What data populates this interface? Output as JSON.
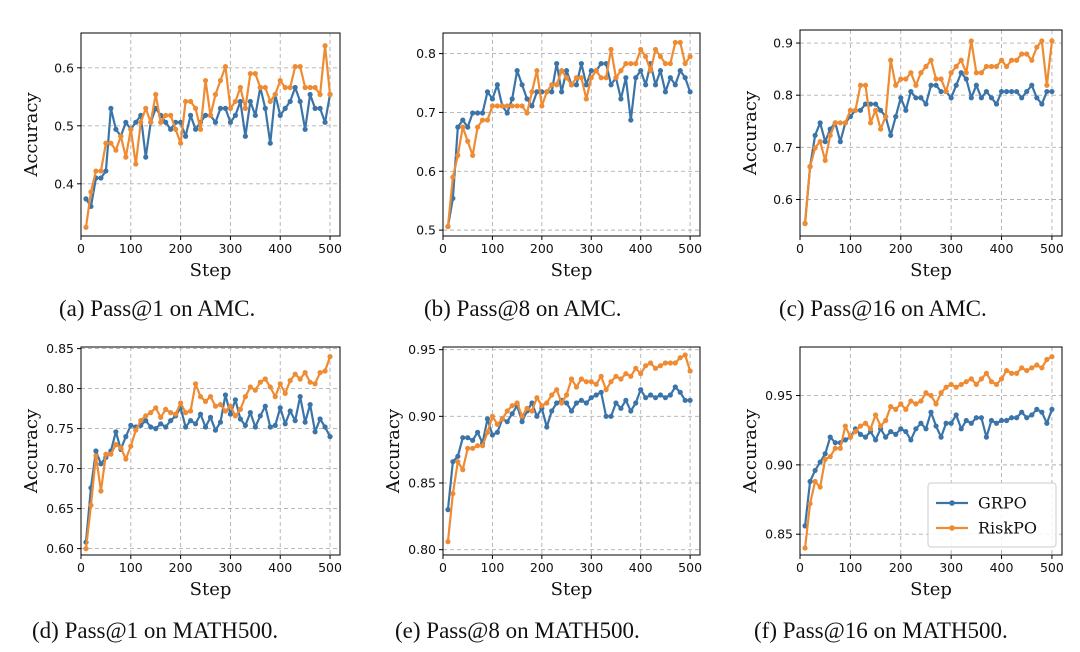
{
  "colors": {
    "grpo": "#3b74a8",
    "riskpo": "#ef8b33",
    "grid": "#b0b0b0",
    "axis": "#000000"
  },
  "legend": {
    "grpo_label": "GRPO",
    "riskpo_label": "RiskPO",
    "placement": "lower-right"
  },
  "chart_data": [
    {
      "type": "line",
      "caption": "(a) Pass@1 on AMC.",
      "xlabel": "Step",
      "ylabel": "Accuracy",
      "xlim": [
        0,
        520
      ],
      "ylim": [
        0.31,
        0.66
      ],
      "xticks": [
        0,
        100,
        200,
        300,
        400,
        500
      ],
      "yticks": [
        0.4,
        0.5,
        0.6
      ],
      "x": [
        10,
        20,
        30,
        40,
        50,
        60,
        70,
        80,
        90,
        100,
        110,
        120,
        130,
        140,
        150,
        160,
        170,
        180,
        190,
        200,
        210,
        220,
        230,
        240,
        250,
        260,
        270,
        280,
        290,
        300,
        310,
        320,
        330,
        340,
        350,
        360,
        370,
        380,
        390,
        400,
        410,
        420,
        430,
        440,
        450,
        460,
        470,
        480,
        490,
        500
      ],
      "series": [
        {
          "name": "GRPO",
          "key": "grpo",
          "values": [
            0.374,
            0.361,
            0.41,
            0.41,
            0.422,
            0.53,
            0.494,
            0.482,
            0.506,
            0.494,
            0.506,
            0.518,
            0.446,
            0.506,
            0.53,
            0.518,
            0.506,
            0.494,
            0.506,
            0.506,
            0.482,
            0.518,
            0.494,
            0.506,
            0.518,
            0.518,
            0.506,
            0.53,
            0.53,
            0.506,
            0.518,
            0.542,
            0.482,
            0.542,
            0.518,
            0.566,
            0.53,
            0.47,
            0.554,
            0.518,
            0.53,
            0.542,
            0.566,
            0.542,
            0.494,
            0.554,
            0.53,
            0.53,
            0.506,
            0.554
          ]
        },
        {
          "name": "RiskPO",
          "key": "riskpo",
          "values": [
            0.325,
            0.386,
            0.422,
            0.422,
            0.47,
            0.47,
            0.458,
            0.482,
            0.446,
            0.494,
            0.434,
            0.506,
            0.53,
            0.506,
            0.554,
            0.506,
            0.518,
            0.518,
            0.494,
            0.47,
            0.542,
            0.542,
            0.53,
            0.494,
            0.578,
            0.518,
            0.554,
            0.578,
            0.602,
            0.53,
            0.542,
            0.566,
            0.53,
            0.59,
            0.59,
            0.566,
            0.566,
            0.542,
            0.554,
            0.578,
            0.566,
            0.566,
            0.602,
            0.602,
            0.566,
            0.566,
            0.566,
            0.554,
            0.638,
            0.554
          ]
        }
      ]
    },
    {
      "type": "line",
      "caption": "(b) Pass@8 on AMC.",
      "xlabel": "Step",
      "ylabel": "",
      "xlim": [
        0,
        520
      ],
      "ylim": [
        0.49,
        0.835
      ],
      "xticks": [
        0,
        100,
        200,
        300,
        400,
        500
      ],
      "yticks": [
        0.5,
        0.6,
        0.7,
        0.8
      ],
      "x": [
        10,
        20,
        30,
        40,
        50,
        60,
        70,
        80,
        90,
        100,
        110,
        120,
        130,
        140,
        150,
        160,
        170,
        180,
        190,
        200,
        210,
        220,
        230,
        240,
        250,
        260,
        270,
        280,
        290,
        300,
        310,
        320,
        330,
        340,
        350,
        360,
        370,
        380,
        390,
        400,
        410,
        420,
        430,
        440,
        450,
        460,
        470,
        480,
        490,
        500
      ],
      "series": [
        {
          "name": "GRPO",
          "key": "grpo",
          "values": [
            0.506,
            0.554,
            0.675,
            0.687,
            0.675,
            0.699,
            0.699,
            0.699,
            0.735,
            0.723,
            0.747,
            0.711,
            0.699,
            0.723,
            0.771,
            0.747,
            0.723,
            0.711,
            0.735,
            0.735,
            0.735,
            0.735,
            0.783,
            0.735,
            0.771,
            0.747,
            0.747,
            0.783,
            0.747,
            0.771,
            0.771,
            0.783,
            0.783,
            0.747,
            0.759,
            0.723,
            0.759,
            0.687,
            0.759,
            0.771,
            0.747,
            0.783,
            0.747,
            0.771,
            0.735,
            0.759,
            0.747,
            0.771,
            0.759,
            0.735
          ]
        },
        {
          "name": "RiskPO",
          "key": "riskpo",
          "values": [
            0.506,
            0.59,
            0.627,
            0.675,
            0.651,
            0.627,
            0.675,
            0.687,
            0.687,
            0.711,
            0.711,
            0.711,
            0.711,
            0.711,
            0.711,
            0.711,
            0.699,
            0.735,
            0.771,
            0.711,
            0.735,
            0.747,
            0.747,
            0.771,
            0.759,
            0.747,
            0.759,
            0.759,
            0.723,
            0.759,
            0.771,
            0.759,
            0.759,
            0.807,
            0.759,
            0.771,
            0.783,
            0.783,
            0.783,
            0.807,
            0.795,
            0.771,
            0.807,
            0.795,
            0.783,
            0.783,
            0.819,
            0.819,
            0.783,
            0.795
          ]
        }
      ]
    },
    {
      "type": "line",
      "caption": "(c) Pass@16 on AMC.",
      "xlabel": "Step",
      "ylabel": "Accuracy",
      "xlim": [
        0,
        520
      ],
      "ylim": [
        0.53,
        0.925
      ],
      "xticks": [
        0,
        100,
        200,
        300,
        400,
        500
      ],
      "yticks": [
        0.6,
        0.7,
        0.8,
        0.9
      ],
      "x": [
        10,
        20,
        30,
        40,
        50,
        60,
        70,
        80,
        90,
        100,
        110,
        120,
        130,
        140,
        150,
        160,
        170,
        180,
        190,
        200,
        210,
        220,
        230,
        240,
        250,
        260,
        270,
        280,
        290,
        300,
        310,
        320,
        330,
        340,
        350,
        360,
        370,
        380,
        390,
        400,
        410,
        420,
        430,
        440,
        450,
        460,
        470,
        480,
        490,
        500
      ],
      "series": [
        {
          "name": "GRPO",
          "key": "grpo",
          "values": [
            0.554,
            0.663,
            0.723,
            0.747,
            0.711,
            0.735,
            0.747,
            0.711,
            0.747,
            0.759,
            0.771,
            0.771,
            0.783,
            0.783,
            0.783,
            0.771,
            0.759,
            0.723,
            0.759,
            0.795,
            0.771,
            0.807,
            0.795,
            0.795,
            0.783,
            0.819,
            0.819,
            0.807,
            0.807,
            0.795,
            0.819,
            0.843,
            0.831,
            0.795,
            0.819,
            0.795,
            0.807,
            0.795,
            0.783,
            0.807,
            0.807,
            0.807,
            0.807,
            0.795,
            0.807,
            0.819,
            0.795,
            0.783,
            0.807,
            0.807
          ]
        },
        {
          "name": "RiskPO",
          "key": "riskpo",
          "values": [
            0.554,
            0.663,
            0.699,
            0.711,
            0.675,
            0.723,
            0.747,
            0.747,
            0.747,
            0.771,
            0.771,
            0.819,
            0.819,
            0.747,
            0.771,
            0.735,
            0.759,
            0.867,
            0.819,
            0.831,
            0.831,
            0.843,
            0.819,
            0.843,
            0.855,
            0.867,
            0.831,
            0.831,
            0.807,
            0.843,
            0.855,
            0.867,
            0.843,
            0.904,
            0.843,
            0.843,
            0.855,
            0.855,
            0.855,
            0.867,
            0.855,
            0.867,
            0.867,
            0.879,
            0.879,
            0.867,
            0.892,
            0.904,
            0.819,
            0.904
          ]
        }
      ]
    },
    {
      "type": "line",
      "caption": "(d) Pass@1 on MATH500.",
      "xlabel": "Step",
      "ylabel": "Accuracy",
      "xlim": [
        0,
        520
      ],
      "ylim": [
        0.592,
        0.852
      ],
      "xticks": [
        0,
        100,
        200,
        300,
        400,
        500
      ],
      "yticks": [
        0.6,
        0.65,
        0.7,
        0.75,
        0.8,
        0.85
      ],
      "x": [
        10,
        20,
        30,
        40,
        50,
        60,
        70,
        80,
        90,
        100,
        110,
        120,
        130,
        140,
        150,
        160,
        170,
        180,
        190,
        200,
        210,
        220,
        230,
        240,
        250,
        260,
        270,
        280,
        290,
        300,
        310,
        320,
        330,
        340,
        350,
        360,
        370,
        380,
        390,
        400,
        410,
        420,
        430,
        440,
        450,
        460,
        470,
        480,
        490,
        500
      ],
      "series": [
        {
          "name": "GRPO",
          "key": "grpo",
          "values": [
            0.608,
            0.676,
            0.722,
            0.706,
            0.714,
            0.722,
            0.746,
            0.724,
            0.74,
            0.754,
            0.752,
            0.754,
            0.76,
            0.752,
            0.75,
            0.756,
            0.752,
            0.76,
            0.766,
            0.776,
            0.752,
            0.76,
            0.756,
            0.768,
            0.752,
            0.764,
            0.748,
            0.758,
            0.792,
            0.768,
            0.786,
            0.762,
            0.754,
            0.77,
            0.752,
            0.766,
            0.778,
            0.752,
            0.754,
            0.776,
            0.756,
            0.772,
            0.76,
            0.79,
            0.758,
            0.78,
            0.746,
            0.762,
            0.752,
            0.74
          ]
        },
        {
          "name": "RiskPO",
          "key": "riskpo",
          "values": [
            0.6,
            0.654,
            0.716,
            0.672,
            0.718,
            0.718,
            0.73,
            0.726,
            0.712,
            0.728,
            0.748,
            0.76,
            0.766,
            0.77,
            0.776,
            0.764,
            0.774,
            0.77,
            0.768,
            0.782,
            0.77,
            0.772,
            0.806,
            0.79,
            0.784,
            0.79,
            0.778,
            0.78,
            0.772,
            0.778,
            0.766,
            0.774,
            0.79,
            0.802,
            0.798,
            0.808,
            0.812,
            0.802,
            0.79,
            0.806,
            0.794,
            0.81,
            0.818,
            0.812,
            0.82,
            0.808,
            0.806,
            0.82,
            0.822,
            0.84
          ]
        }
      ]
    },
    {
      "type": "line",
      "caption": "(e) Pass@8 on MATH500.",
      "xlabel": "Step",
      "ylabel": "Accuracy",
      "xlim": [
        0,
        520
      ],
      "ylim": [
        0.796,
        0.952
      ],
      "xticks": [
        0,
        100,
        200,
        300,
        400,
        500
      ],
      "yticks": [
        0.8,
        0.85,
        0.9,
        0.95
      ],
      "x": [
        10,
        20,
        30,
        40,
        50,
        60,
        70,
        80,
        90,
        100,
        110,
        120,
        130,
        140,
        150,
        160,
        170,
        180,
        190,
        200,
        210,
        220,
        230,
        240,
        250,
        260,
        270,
        280,
        290,
        300,
        310,
        320,
        330,
        340,
        350,
        360,
        370,
        380,
        390,
        400,
        410,
        420,
        430,
        440,
        450,
        460,
        470,
        480,
        490,
        500
      ],
      "series": [
        {
          "name": "GRPO",
          "key": "grpo",
          "values": [
            0.83,
            0.866,
            0.87,
            0.884,
            0.884,
            0.882,
            0.888,
            0.88,
            0.898,
            0.886,
            0.888,
            0.898,
            0.896,
            0.902,
            0.908,
            0.896,
            0.904,
            0.91,
            0.9,
            0.906,
            0.892,
            0.904,
            0.91,
            0.912,
            0.91,
            0.904,
            0.91,
            0.912,
            0.91,
            0.914,
            0.916,
            0.918,
            0.9,
            0.9,
            0.91,
            0.906,
            0.912,
            0.904,
            0.91,
            0.92,
            0.914,
            0.916,
            0.914,
            0.916,
            0.914,
            0.916,
            0.922,
            0.918,
            0.912,
            0.912
          ]
        },
        {
          "name": "RiskPO",
          "key": "riskpo",
          "values": [
            0.806,
            0.842,
            0.866,
            0.86,
            0.876,
            0.876,
            0.878,
            0.878,
            0.888,
            0.9,
            0.894,
            0.898,
            0.904,
            0.908,
            0.91,
            0.9,
            0.906,
            0.904,
            0.914,
            0.908,
            0.91,
            0.916,
            0.92,
            0.91,
            0.916,
            0.928,
            0.922,
            0.928,
            0.926,
            0.926,
            0.924,
            0.93,
            0.92,
            0.926,
            0.93,
            0.928,
            0.932,
            0.93,
            0.936,
            0.932,
            0.938,
            0.94,
            0.936,
            0.938,
            0.94,
            0.94,
            0.94,
            0.944,
            0.946,
            0.934
          ]
        }
      ]
    },
    {
      "type": "line",
      "caption": "(f) Pass@16 on MATH500.",
      "xlabel": "Step",
      "ylabel": "Accuracy",
      "xlim": [
        0,
        520
      ],
      "ylim": [
        0.835,
        0.985
      ],
      "xticks": [
        0,
        100,
        200,
        300,
        400,
        500
      ],
      "yticks": [
        0.85,
        0.9,
        0.95
      ],
      "x": [
        10,
        20,
        30,
        40,
        50,
        60,
        70,
        80,
        90,
        100,
        110,
        120,
        130,
        140,
        150,
        160,
        170,
        180,
        190,
        200,
        210,
        220,
        230,
        240,
        250,
        260,
        270,
        280,
        290,
        300,
        310,
        320,
        330,
        340,
        350,
        360,
        370,
        380,
        390,
        400,
        410,
        420,
        430,
        440,
        450,
        460,
        470,
        480,
        490,
        500
      ],
      "series": [
        {
          "name": "GRPO",
          "key": "grpo",
          "values": [
            0.856,
            0.888,
            0.896,
            0.902,
            0.908,
            0.92,
            0.916,
            0.916,
            0.918,
            0.92,
            0.926,
            0.922,
            0.92,
            0.924,
            0.918,
            0.926,
            0.92,
            0.924,
            0.922,
            0.926,
            0.924,
            0.918,
            0.926,
            0.93,
            0.926,
            0.938,
            0.928,
            0.92,
            0.93,
            0.93,
            0.936,
            0.926,
            0.932,
            0.93,
            0.934,
            0.934,
            0.92,
            0.932,
            0.93,
            0.932,
            0.932,
            0.934,
            0.934,
            0.938,
            0.934,
            0.936,
            0.94,
            0.938,
            0.93,
            0.94
          ]
        },
        {
          "name": "RiskPO",
          "key": "riskpo",
          "values": [
            0.84,
            0.872,
            0.888,
            0.884,
            0.904,
            0.906,
            0.912,
            0.912,
            0.928,
            0.92,
            0.924,
            0.928,
            0.93,
            0.926,
            0.936,
            0.928,
            0.932,
            0.942,
            0.94,
            0.944,
            0.94,
            0.946,
            0.944,
            0.946,
            0.952,
            0.95,
            0.944,
            0.952,
            0.956,
            0.958,
            0.956,
            0.958,
            0.96,
            0.962,
            0.958,
            0.962,
            0.966,
            0.96,
            0.958,
            0.962,
            0.968,
            0.966,
            0.966,
            0.97,
            0.968,
            0.97,
            0.972,
            0.97,
            0.976,
            0.978
          ]
        }
      ]
    }
  ]
}
